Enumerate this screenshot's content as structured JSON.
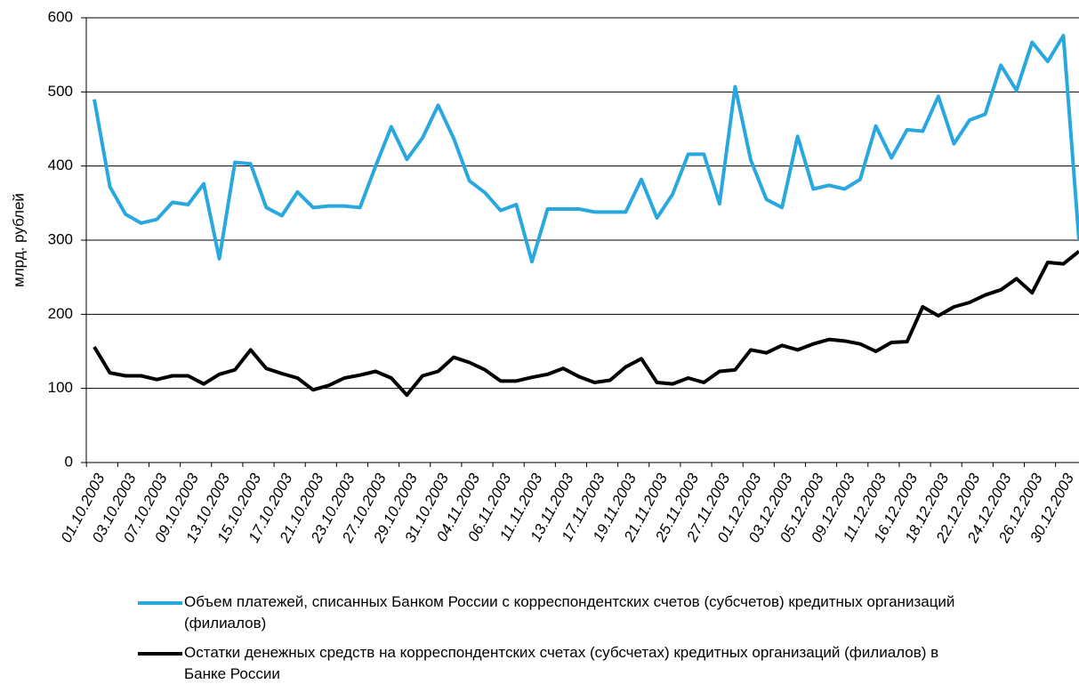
{
  "chart_data": {
    "type": "line",
    "ylabel": "млрд. рублей",
    "categories": [
      "01.10.2003",
      null,
      "03.10.2003",
      null,
      "07.10.2003",
      null,
      "09.10.2003",
      null,
      "13.10.2003",
      null,
      "15.10.2003",
      null,
      "17.10.2003",
      null,
      "21.10.2003",
      null,
      "23.10.2003",
      null,
      "27.10.2003",
      null,
      "29.10.2003",
      null,
      "31.10.2003",
      null,
      "04.11.2003",
      null,
      "06.11.2003",
      null,
      "11.11.2003",
      null,
      "13.11.2003",
      null,
      "17.11.2003",
      null,
      "19.11.2003",
      null,
      "21.11.2003",
      null,
      "25.11.2003",
      null,
      "27.11.2003",
      null,
      "01.12.2003",
      null,
      "03.12.2003",
      null,
      "05.12.2003",
      null,
      "09.12.2003",
      null,
      "11.12.2003",
      null,
      "16.12.2003",
      null,
      "18.12.2003",
      null,
      "22.12.2003",
      null,
      "24.12.2003",
      null,
      "26.12.2003",
      null,
      "30.12.2003",
      null
    ],
    "series": [
      {
        "name": "Объем платежей, списанных Банком России с корреспондентских счетов (субсчетов) кредитных организаций (филиалов)",
        "color": "#29a8e0",
        "values": [
          490,
          372,
          335,
          323,
          328,
          351,
          348,
          376,
          275,
          405,
          403,
          344,
          333,
          365,
          344,
          346,
          346,
          344,
          400,
          453,
          409,
          438,
          482,
          437,
          380,
          364,
          340,
          348,
          271,
          342,
          342,
          342,
          338,
          338,
          338,
          382,
          330,
          362,
          416,
          416,
          349,
          507,
          408,
          355,
          344,
          440,
          369,
          374,
          369,
          382,
          454,
          411,
          449,
          447,
          494,
          430,
          462,
          470,
          536,
          502,
          567,
          541,
          576,
          300
        ]
      },
      {
        "name": "Остатки денежных средств на корреспондентских счетах (субсчетах) кредитных организаций (филиалов) в Банке России",
        "color": "#000000",
        "values": [
          156,
          121,
          117,
          117,
          112,
          117,
          117,
          106,
          119,
          125,
          152,
          127,
          120,
          114,
          98,
          104,
          114,
          118,
          123,
          114,
          91,
          117,
          123,
          142,
          135,
          125,
          110,
          110,
          115,
          119,
          127,
          116,
          108,
          111,
          129,
          140,
          108,
          106,
          114,
          108,
          123,
          125,
          152,
          148,
          158,
          152,
          160,
          166,
          164,
          160,
          150,
          162,
          163,
          210,
          198,
          210,
          216,
          226,
          233,
          248,
          229,
          270,
          268,
          285
        ]
      }
    ],
    "ylim": [
      0,
      600
    ],
    "yticks": [
      0,
      100,
      200,
      300,
      400,
      500,
      600
    ],
    "grid": true
  }
}
